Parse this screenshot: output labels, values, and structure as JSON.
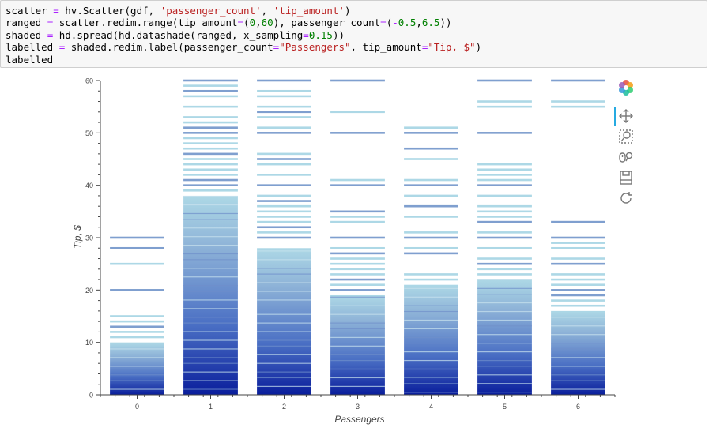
{
  "code_cell": {
    "lines": [
      [
        {
          "t": "scatter "
        },
        {
          "t": "=",
          "c": "op"
        },
        {
          "t": " hv.Scatter(gdf, "
        },
        {
          "t": "'passenger_count'",
          "c": "str"
        },
        {
          "t": ", "
        },
        {
          "t": "'tip_amount'",
          "c": "str"
        },
        {
          "t": ")"
        }
      ],
      [
        {
          "t": "ranged "
        },
        {
          "t": "=",
          "c": "op"
        },
        {
          "t": " scatter.redim.range(tip_amount"
        },
        {
          "t": "=",
          "c": "op"
        },
        {
          "t": "("
        },
        {
          "t": "0",
          "c": "num"
        },
        {
          "t": ","
        },
        {
          "t": "60",
          "c": "num"
        },
        {
          "t": "), passenger_count"
        },
        {
          "t": "=",
          "c": "op"
        },
        {
          "t": "("
        },
        {
          "t": "-",
          "c": "op"
        },
        {
          "t": "0.5",
          "c": "num"
        },
        {
          "t": ","
        },
        {
          "t": "6.5",
          "c": "num"
        },
        {
          "t": "))"
        }
      ],
      [
        {
          "t": "shaded "
        },
        {
          "t": "=",
          "c": "op"
        },
        {
          "t": " hd.spread(hd.datashade(ranged, x_sampling"
        },
        {
          "t": "=",
          "c": "op"
        },
        {
          "t": "0.15",
          "c": "num"
        },
        {
          "t": "))"
        }
      ],
      [
        {
          "t": "labelled "
        },
        {
          "t": "=",
          "c": "op"
        },
        {
          "t": " shaded.redim.label(passenger_count"
        },
        {
          "t": "=",
          "c": "op"
        },
        {
          "t": "\"Passengers\"",
          "c": "str"
        },
        {
          "t": ", tip_amount"
        },
        {
          "t": "=",
          "c": "op"
        },
        {
          "t": "\"Tip, $\"",
          "c": "str"
        },
        {
          "t": ")"
        }
      ],
      [
        {
          "t": "labelled"
        }
      ]
    ]
  },
  "colors": {
    "code_bg": "#f7f7f7",
    "shade_light": "#add8e6",
    "shade_dark": "#00008b",
    "axis": "#444444",
    "toolbar_active": "#26aae1"
  },
  "toolbar": {
    "tools": [
      {
        "name": "bokeh-logo-icon",
        "active": false
      },
      {
        "name": "pan-icon",
        "active": true
      },
      {
        "name": "box-zoom-icon",
        "active": false
      },
      {
        "name": "wheel-zoom-icon",
        "active": false
      },
      {
        "name": "save-icon",
        "active": false
      },
      {
        "name": "reset-icon",
        "active": false
      }
    ]
  },
  "chart_data": {
    "type": "heatmap",
    "xlabel": "Passengers",
    "ylabel": "Tip, $",
    "xlim": [
      -0.5,
      6.5
    ],
    "ylim": [
      0,
      60
    ],
    "x_ticks": [
      0,
      1,
      2,
      3,
      4,
      5,
      6
    ],
    "y_ticks": [
      0,
      10,
      20,
      30,
      40,
      50,
      60
    ],
    "columns": [
      {
        "passengers": 0,
        "dense_max": 10,
        "max_tip": 30,
        "lines": [
          11,
          12,
          13,
          14,
          15,
          20,
          25,
          28,
          30
        ]
      },
      {
        "passengers": 1,
        "dense_max": 38,
        "max_tip": 60,
        "lines": [
          39,
          40,
          41,
          42,
          43,
          44,
          45,
          46,
          47,
          48,
          49,
          50,
          51,
          52,
          53,
          55,
          57,
          58,
          59,
          60
        ]
      },
      {
        "passengers": 2,
        "dense_max": 28,
        "max_tip": 60,
        "lines": [
          30,
          31,
          32,
          33,
          34,
          35,
          36,
          37,
          38,
          40,
          42,
          44,
          45,
          46,
          50,
          51,
          53,
          54,
          55,
          57,
          58,
          60
        ]
      },
      {
        "passengers": 3,
        "dense_max": 19,
        "max_tip": 60,
        "lines": [
          20,
          21,
          22,
          23,
          24,
          25,
          26,
          27,
          28,
          30,
          33,
          34,
          35,
          40,
          41,
          50,
          54,
          60
        ]
      },
      {
        "passengers": 4,
        "dense_max": 21,
        "max_tip": 51,
        "lines": [
          22,
          23,
          27,
          28,
          30,
          31,
          34,
          36,
          38,
          40,
          41,
          45,
          47,
          50,
          51
        ]
      },
      {
        "passengers": 5,
        "dense_max": 22,
        "max_tip": 60,
        "lines": [
          23,
          24,
          25,
          26,
          28,
          30,
          31,
          33,
          34,
          35,
          36,
          38,
          40,
          41,
          42,
          43,
          44,
          50,
          55,
          56,
          60
        ]
      },
      {
        "passengers": 6,
        "dense_max": 16,
        "max_tip": 60,
        "lines": [
          17,
          18,
          19,
          20,
          21,
          22,
          23,
          25,
          26,
          28,
          29,
          30,
          33,
          55,
          56,
          60
        ]
      }
    ]
  }
}
